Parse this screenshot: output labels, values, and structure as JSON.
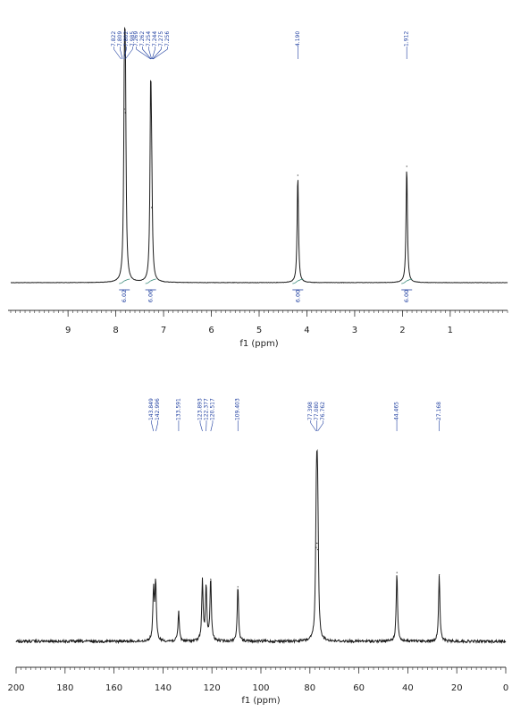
{
  "colors": {
    "trace": "#1c1c1c",
    "annotation": "#1f3fa0",
    "integral": "#3a8a7a",
    "axis": "#333333"
  },
  "chart_data": [
    {
      "type": "line",
      "title": "",
      "xlabel": "f1 (ppm)",
      "ylabel": "",
      "xlim": [
        10.2,
        -0.2
      ],
      "x_reversed": true,
      "x_ticks": [
        "9",
        "8",
        "7",
        "6",
        "5",
        "4",
        "3",
        "2",
        "1"
      ],
      "peak_labels": [
        "7.822",
        "7.809",
        "7.802",
        "7.985",
        "7.269",
        "7.262",
        "7.254",
        "7.244",
        "7.275",
        "7.256",
        "4.190",
        "1.912"
      ],
      "peak_label_shifts": [
        7.89,
        7.86,
        7.83,
        7.8,
        7.27,
        7.26,
        7.25,
        7.24,
        7.23,
        7.22,
        4.19,
        1.91
      ],
      "series": [
        {
          "peaks": [
            {
              "x": 7.82,
              "height": 0.97
            },
            {
              "x": 7.8,
              "height": 0.95
            },
            {
              "x": 7.27,
              "height": 1.0
            },
            {
              "x": 7.25,
              "height": 0.42
            },
            {
              "x": 4.19,
              "height": 0.6
            },
            {
              "x": 1.91,
              "height": 0.65
            }
          ]
        }
      ],
      "integrals": [
        {
          "x": 7.82,
          "label": "6.02"
        },
        {
          "x": 7.27,
          "label": "6.06"
        },
        {
          "x": 4.19,
          "label": "6.00"
        },
        {
          "x": 1.91,
          "label": "6.00"
        }
      ]
    },
    {
      "type": "line",
      "title": "",
      "xlabel": "f1 (ppm)",
      "ylabel": "",
      "xlim": [
        200,
        0
      ],
      "x_reversed": true,
      "x_ticks": [
        "200",
        "180",
        "160",
        "140",
        "120",
        "100",
        "80",
        "60",
        "40",
        "20",
        "0"
      ],
      "peak_labels": [
        "143.849",
        "142.996",
        "133.591",
        "123.893",
        "122.377",
        "120.517",
        "109.403",
        "77.398",
        "77.080",
        "76.762",
        "44.465",
        "27.168"
      ],
      "peak_label_shifts": [
        143.9,
        142.9,
        133.6,
        123.9,
        122.4,
        120.5,
        109.4,
        77.4,
        77.1,
        76.8,
        44.5,
        27.2
      ],
      "series": [
        {
          "peaks": [
            {
              "x": 143.849,
              "height": 0.47
            },
            {
              "x": 142.996,
              "height": 0.52
            },
            {
              "x": 133.591,
              "height": 0.27
            },
            {
              "x": 123.893,
              "height": 0.55
            },
            {
              "x": 122.377,
              "height": 0.49
            },
            {
              "x": 120.517,
              "height": 0.57
            },
            {
              "x": 109.403,
              "height": 0.5
            },
            {
              "x": 77.398,
              "height": 0.86
            },
            {
              "x": 77.08,
              "height": 0.9
            },
            {
              "x": 76.762,
              "height": 0.84
            },
            {
              "x": 44.465,
              "height": 0.63
            },
            {
              "x": 27.168,
              "height": 0.61
            }
          ]
        }
      ]
    }
  ]
}
